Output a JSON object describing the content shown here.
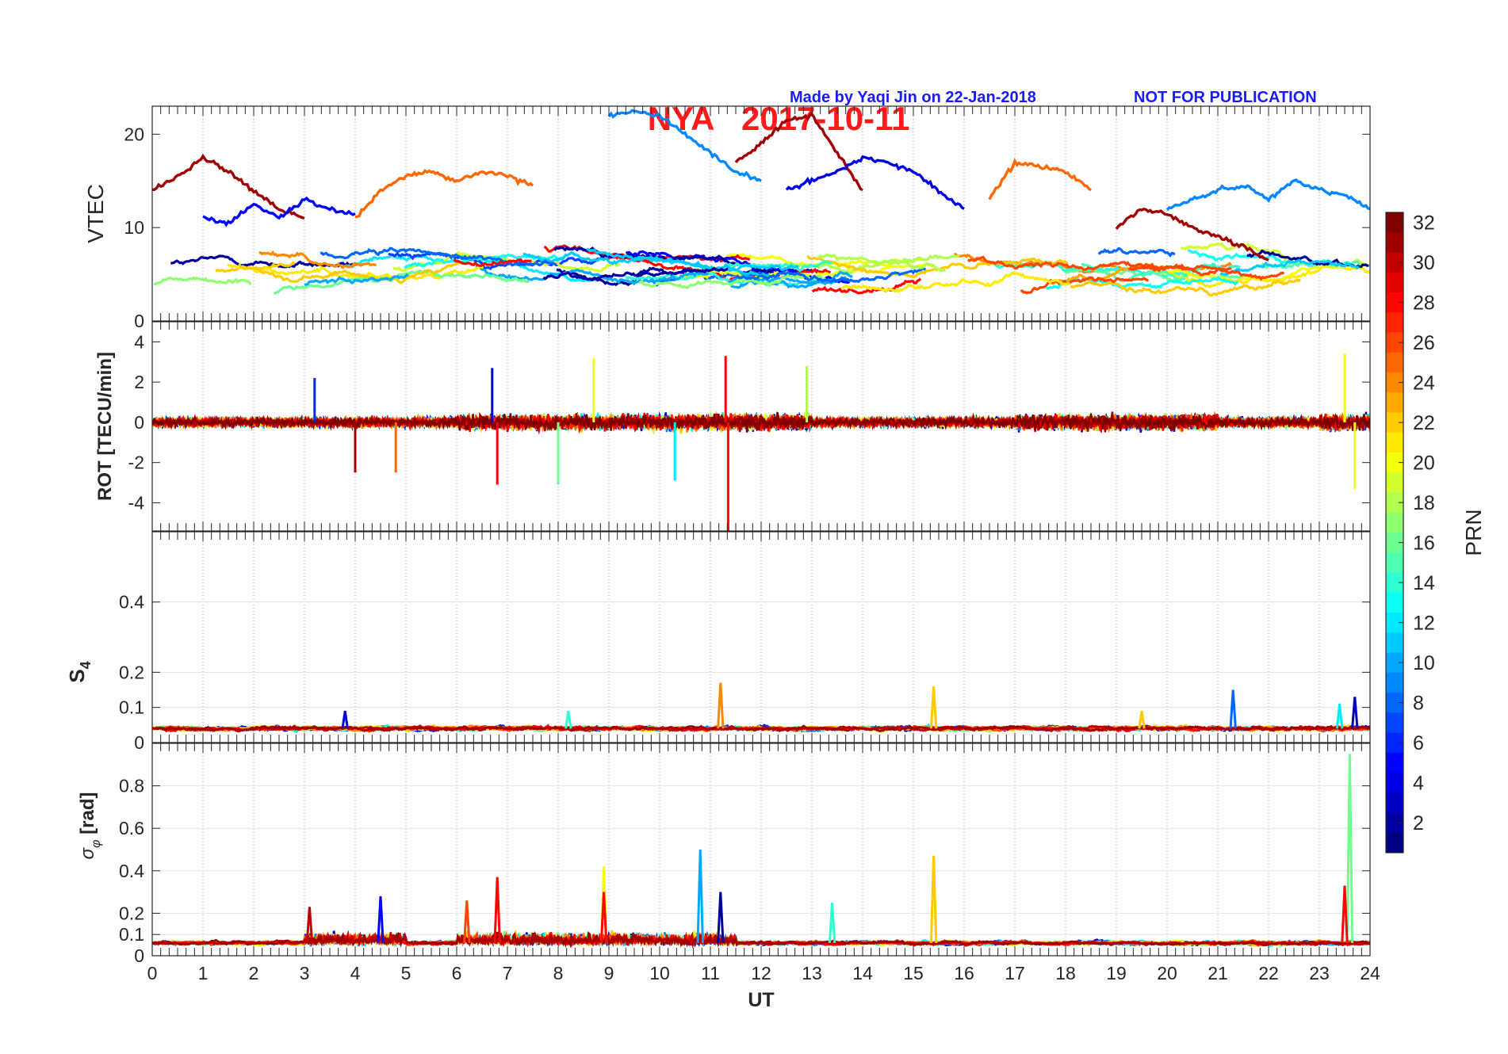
{
  "figure": {
    "station": "NYA",
    "date": "2017-10-11",
    "credit": "Made by Yaqi Jin on 22-Jan-2018",
    "notice": "NOT FOR PUBLICATION"
  },
  "colors": {
    "title": "#ff1a1a",
    "credit": "#1a1aff",
    "colormap": "jet"
  },
  "chart_data": [
    {
      "type": "line",
      "panel": "vtec",
      "ylabel": "VTEC",
      "ylim": [
        0,
        23
      ],
      "yticks": [
        0,
        10,
        20
      ],
      "xlim": [
        0,
        24
      ],
      "grid": "vertical-dotted",
      "series_summary": "Per-PRN VTEC arcs colored by PRN (1-32); baseline ~3-8 TECU with high-PRN arcs up to ~22 TECU near 12-13 UT",
      "sample_arcs": [
        {
          "prn": 31,
          "x": [
            0,
            0.5,
            1,
            1.5,
            2,
            2.5,
            3
          ],
          "y": [
            14,
            15.5,
            17.5,
            16,
            14,
            12,
            11
          ]
        },
        {
          "prn": 5,
          "x": [
            1,
            1.5,
            2,
            2.5,
            3,
            3.5,
            4
          ],
          "y": [
            11,
            10.5,
            12.5,
            11,
            13,
            12,
            11.5
          ]
        },
        {
          "prn": 25,
          "x": [
            4,
            4.5,
            5,
            5.5,
            6,
            6.5,
            7,
            7.5
          ],
          "y": [
            11,
            14,
            15.5,
            16,
            15,
            16,
            15.5,
            14.5
          ]
        },
        {
          "prn": 9,
          "x": [
            9,
            9.5,
            10,
            10.5,
            11,
            11.5,
            12
          ],
          "y": [
            22,
            22.5,
            22,
            20,
            18,
            16,
            15
          ]
        },
        {
          "prn": 31,
          "x": [
            11.5,
            12,
            12.5,
            13,
            13.5,
            14
          ],
          "y": [
            17,
            19,
            21.5,
            22,
            18,
            14
          ]
        },
        {
          "prn": 4,
          "x": [
            12.5,
            13,
            13.5,
            14,
            14.5,
            15,
            15.5,
            16
          ],
          "y": [
            14,
            15,
            16,
            17.5,
            17,
            16,
            14,
            12
          ]
        },
        {
          "prn": 25,
          "x": [
            16.5,
            17,
            17.5,
            18,
            18.5
          ],
          "y": [
            13,
            17,
            16.5,
            16,
            14
          ]
        },
        {
          "prn": 9,
          "x": [
            20,
            20.5,
            21,
            21.5,
            22,
            22.5,
            23,
            23.5,
            24
          ],
          "y": [
            12,
            13,
            14,
            14.5,
            13,
            15,
            14,
            13.5,
            12
          ]
        },
        {
          "prn": 31,
          "x": [
            19,
            19.5,
            20,
            20.5,
            21,
            21.5,
            22
          ],
          "y": [
            10,
            12,
            11.5,
            10,
            9,
            8,
            6.5
          ]
        }
      ]
    },
    {
      "type": "line",
      "panel": "rot",
      "ylabel": "ROT [TECU/min]",
      "ylim": [
        -5.4,
        5
      ],
      "yticks": [
        -4,
        -2,
        0,
        2,
        4
      ],
      "xlim": [
        0,
        24
      ],
      "grid": "vertical-dotted",
      "series_summary": "Rate of TEC fluctuations around 0; typical amplitude +/-1 TECU/min, peaks ~3.3 near 11.3 UT, minimum below -5 near 11.3 UT"
    },
    {
      "type": "line",
      "panel": "s4",
      "ylabel": "S4",
      "ylim": [
        0,
        0.6
      ],
      "yticks": [
        0,
        0.1,
        0.2,
        0.4
      ],
      "xlim": [
        0,
        24
      ],
      "grid": "vertical-dotted",
      "series_summary": "Amplitude scintillation index ~0.03-0.06; spikes ~0.17 at 11.2 UT, ~0.16 at 15.4 UT, ~0.15 at 21.3 UT"
    },
    {
      "type": "line",
      "panel": "sigma_phi",
      "ylabel": "σφ [rad]",
      "ylim": [
        0,
        1
      ],
      "yticks": [
        0,
        0.1,
        0.2,
        0.4,
        0.6,
        0.8
      ],
      "xlim": [
        0,
        24
      ],
      "xticks": [
        0,
        1,
        2,
        3,
        4,
        5,
        6,
        7,
        8,
        9,
        10,
        11,
        12,
        13,
        14,
        15,
        16,
        17,
        18,
        19,
        20,
        21,
        22,
        23,
        24
      ],
      "xlabel": "UT",
      "grid": "vertical-dotted",
      "series_summary": "Phase scintillation index ~0.05-0.15; peaks ~0.5 at 10.8 UT, ~0.47 at 15.4 UT, ~0.95 at 23.6 UT"
    }
  ],
  "colorbar": {
    "label": "PRN",
    "range": [
      1,
      32
    ],
    "ticks": [
      2,
      4,
      6,
      8,
      10,
      12,
      14,
      16,
      18,
      20,
      22,
      24,
      26,
      28,
      30,
      32
    ]
  }
}
